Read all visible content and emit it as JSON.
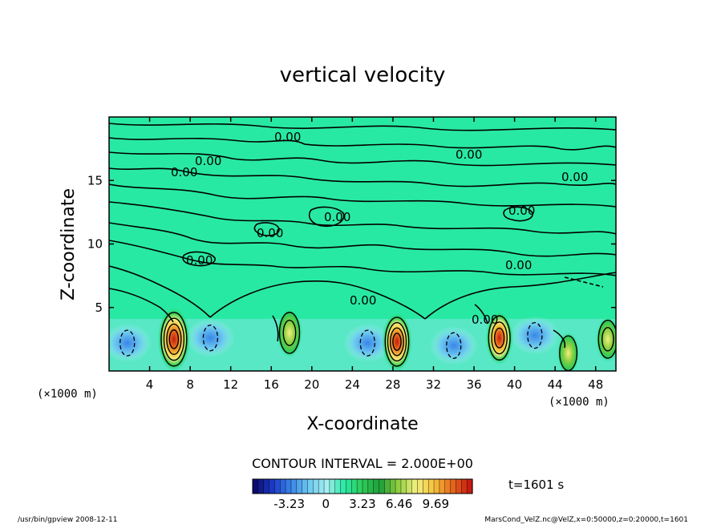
{
  "chart_data": {
    "type": "heatmap",
    "title": "vertical velocity",
    "xlabel": "X-coordinate",
    "ylabel": "Z-coordinate",
    "x_unit": "(×1000 m)",
    "y_unit": "(×1000 m)",
    "xlim": [
      0,
      50
    ],
    "ylim": [
      0,
      20
    ],
    "x_ticks": [
      4,
      8,
      12,
      16,
      20,
      24,
      28,
      32,
      36,
      40,
      44,
      48
    ],
    "y_ticks": [
      5,
      10,
      15
    ],
    "contour_label": "0.00",
    "contour_interval_text": "CONTOUR INTERVAL = 2.000E+00",
    "colorbar": {
      "ticks": [
        "-3.23",
        "0",
        "3.23",
        "6.46",
        "9.69"
      ],
      "min": -6.46,
      "max": 12.92,
      "colors": [
        "#0b0b6e",
        "#1b3cc9",
        "#3a86e8",
        "#6ccaf0",
        "#a5eef0",
        "#28e9a4",
        "#2ecb55",
        "#1f9e3a",
        "#8fcf40",
        "#f2f080",
        "#f5c23a",
        "#e86a1e",
        "#c61b10"
      ]
    },
    "updrafts": [
      {
        "x": 6.4,
        "z": 2.5,
        "peak": 9.5
      },
      {
        "x": 17.8,
        "z": 3.0,
        "peak": 5.5
      },
      {
        "x": 28.4,
        "z": 2.3,
        "peak": 8.0
      },
      {
        "x": 38.5,
        "z": 2.6,
        "peak": 6.5
      },
      {
        "x": 45.3,
        "z": 1.4,
        "peak": 3.5
      },
      {
        "x": 49.2,
        "z": 2.5,
        "peak": 4.5
      }
    ],
    "downdrafts": [
      {
        "x": 1.8,
        "z": 2.2
      },
      {
        "x": 10.0,
        "z": 2.6
      },
      {
        "x": 25.5,
        "z": 2.2
      },
      {
        "x": 34.0,
        "z": 2.0
      },
      {
        "x": 42.0,
        "z": 2.8
      }
    ],
    "time_label": "t=1601 s"
  },
  "footer": {
    "left": "/usr/bin/gpview   2008-12-11",
    "right": "MarsCond_VelZ.nc@VelZ,x=0:50000,z=0:20000,t=1601"
  }
}
